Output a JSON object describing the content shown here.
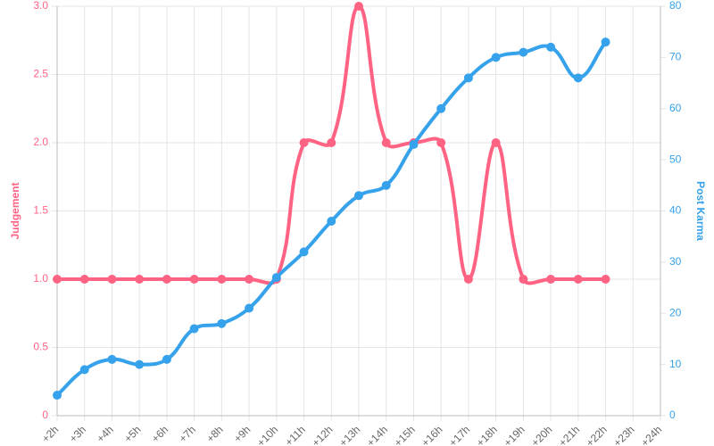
{
  "chart_data": {
    "type": "line",
    "categories": [
      "+2h",
      "+3h",
      "+4h",
      "+5h",
      "+6h",
      "+7h",
      "+8h",
      "+9h",
      "+10h",
      "+11h",
      "+12h",
      "+13h",
      "+14h",
      "+15h",
      "+16h",
      "+17h",
      "+18h",
      "+19h",
      "+20h",
      "+21h",
      "+22h",
      "+23h",
      "+24h"
    ],
    "series": [
      {
        "name": "Judgement",
        "color": "#ff6384",
        "axis": "y",
        "values": [
          1,
          1,
          1,
          1,
          1,
          1,
          1,
          1,
          1,
          2,
          2,
          3,
          2,
          2,
          2,
          1,
          2,
          1,
          1,
          1,
          1,
          null,
          null
        ]
      },
      {
        "name": "Post Karma",
        "color": "#36a2eb",
        "axis": "y2",
        "values": [
          4,
          9,
          11,
          10,
          11,
          17,
          18,
          21,
          27,
          32,
          38,
          43,
          45,
          53,
          60,
          66,
          70,
          71,
          72,
          66,
          73,
          null,
          null
        ]
      }
    ],
    "ylabel": "Judgement",
    "y2label": "Post Karma",
    "ylim": [
      0,
      3
    ],
    "yticks": [
      0,
      0.5,
      {
        "value": 1,
        "label": "1.0"
      },
      1.5,
      {
        "value": 2,
        "label": "2.0"
      },
      2.5,
      {
        "value": 3,
        "label": "3.0"
      }
    ],
    "y2lim": [
      0,
      80
    ],
    "y2ticks": [
      0,
      10,
      20,
      30,
      40,
      50,
      60,
      70,
      80
    ],
    "grid": true
  }
}
